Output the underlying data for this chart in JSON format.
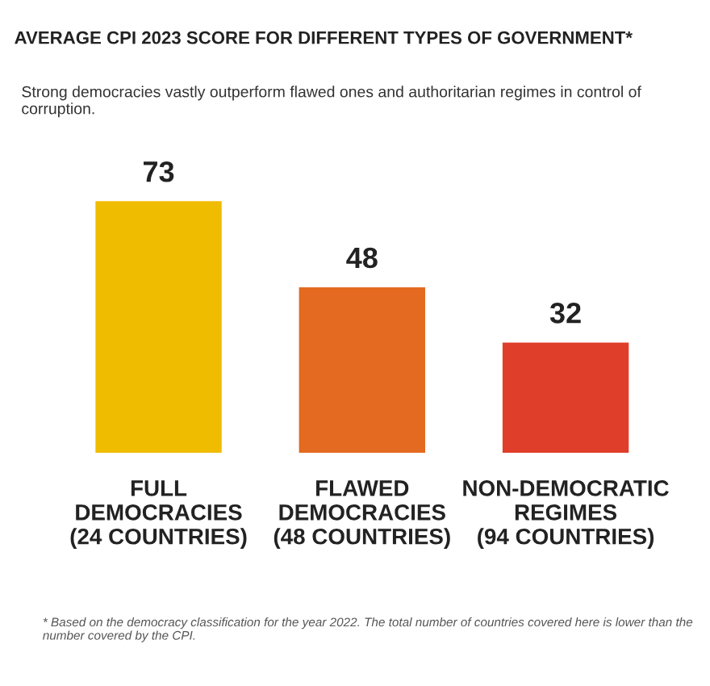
{
  "chart_data": {
    "type": "bar",
    "title": "AVERAGE CPI 2023 SCORE FOR DIFFERENT TYPES OF GOVERNMENT*",
    "subtitle": "Strong democracies vastly outperform flawed ones and authoritarian regimes in control of corruption.",
    "categories": [
      "FULL\nDEMOCRACIES\n(24 COUNTRIES)",
      "FLAWED\nDEMOCRACIES\n(48 COUNTRIES)",
      "NON-DEMOCRATIC\nREGIMES\n(94 COUNTRIES)"
    ],
    "values": [
      73,
      48,
      32
    ],
    "colors": [
      "#f0bc00",
      "#e36a20",
      "#df3e2a"
    ],
    "data_labels": true,
    "grid": false,
    "legend": false,
    "annotations": [
      "* Based on the democracy classification for the year 2022. The total number of countries covered here is lower than the number covered by the CPI."
    ]
  }
}
